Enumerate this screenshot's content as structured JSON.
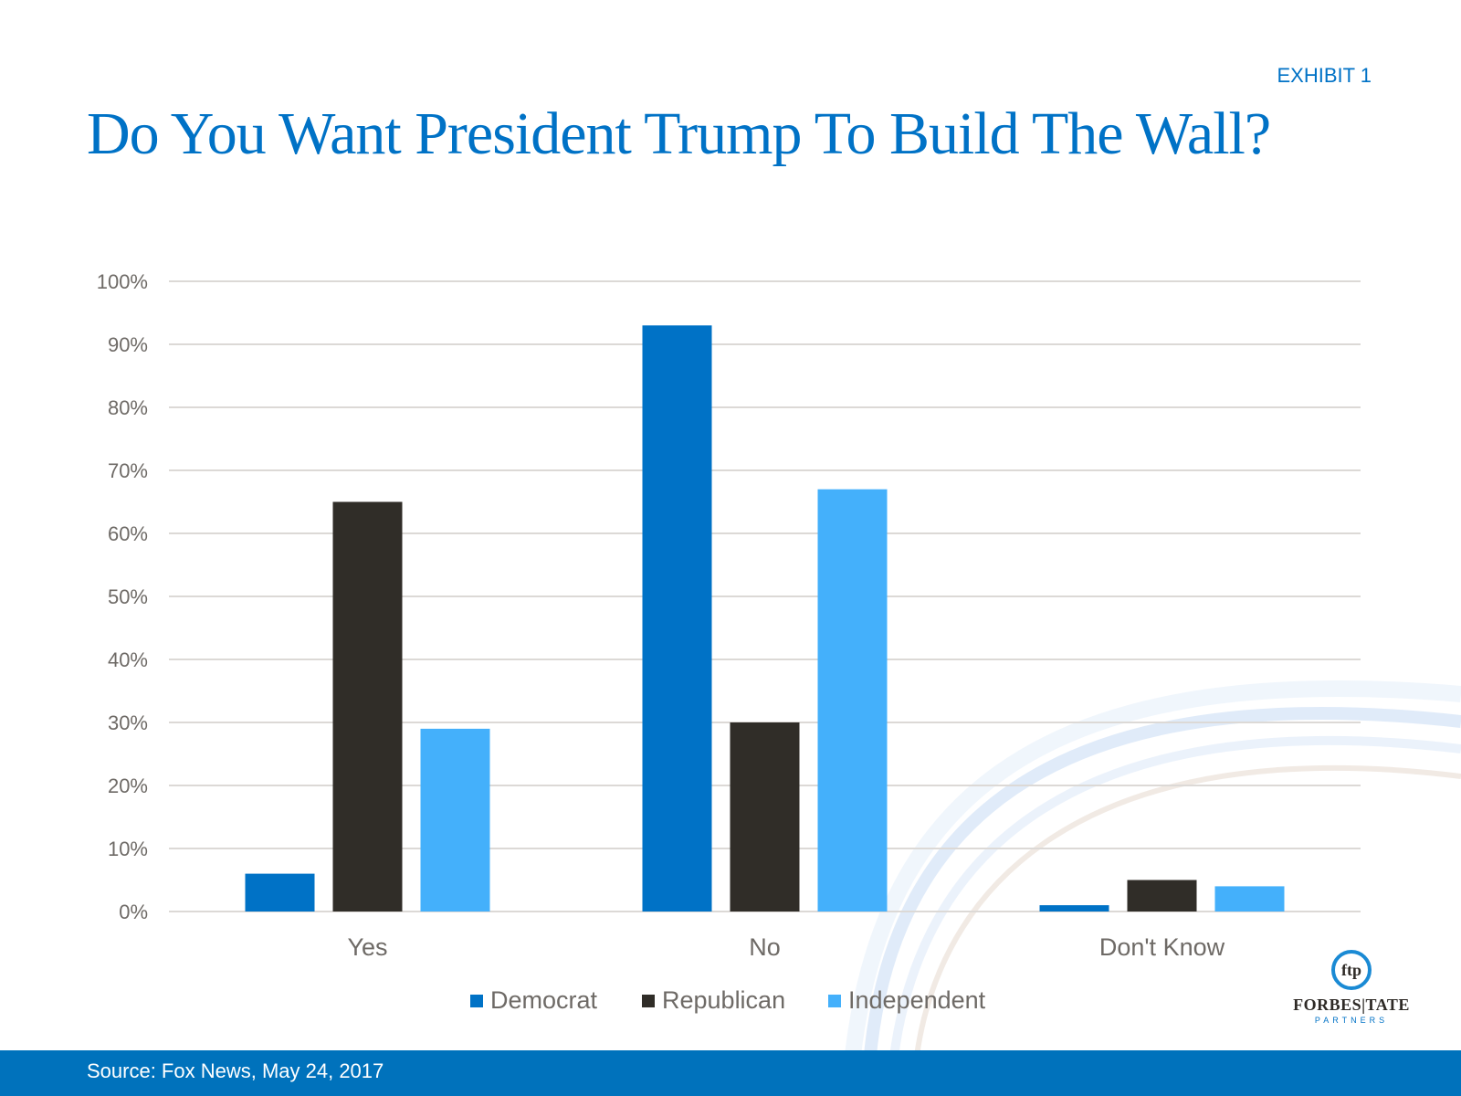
{
  "exhibit_label": "EXHIBIT 1",
  "title": "Do You Want President Trump To Build The Wall?",
  "footer": {
    "source": "Source: Fox News, May 24, 2017"
  },
  "logo": {
    "mark": "ftp",
    "name": "FORBES|TATE",
    "sub": "PARTNERS"
  },
  "chart_data": {
    "type": "bar",
    "title": "Do You Want President Trump To Build The Wall?",
    "xlabel": "",
    "ylabel": "",
    "categories": [
      "Yes",
      "No",
      "Don't Know"
    ],
    "series": [
      {
        "name": "Democrat",
        "color": "#0072C6",
        "values": [
          6,
          93,
          1
        ]
      },
      {
        "name": "Republican",
        "color": "#302D28",
        "values": [
          65,
          30,
          5
        ]
      },
      {
        "name": "Independent",
        "color": "#44B0FB",
        "values": [
          29,
          67,
          4
        ]
      }
    ],
    "ylim": [
      0,
      100
    ],
    "yticks": [
      "0%",
      "10%",
      "20%",
      "30%",
      "40%",
      "50%",
      "60%",
      "70%",
      "80%",
      "90%",
      "100%"
    ],
    "grid": true,
    "legend_position": "bottom"
  }
}
